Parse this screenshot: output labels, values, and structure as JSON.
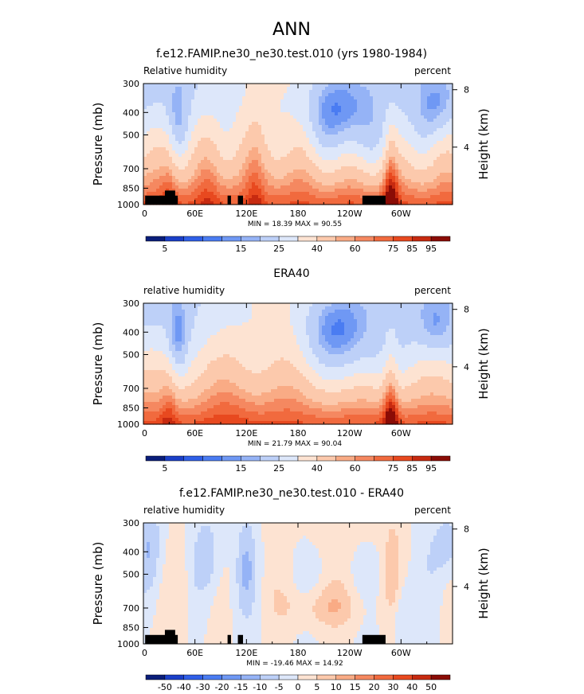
{
  "page_title": "ANN",
  "colors": {
    "blues": [
      "#0a1e7a",
      "#1a3fc8",
      "#2f5fe8",
      "#4a7cf2",
      "#6f98f4",
      "#95b3f6",
      "#bdd0f8",
      "#dde7fa"
    ],
    "reds": [
      "#fde3d2",
      "#fcc9ac",
      "#f9ab85",
      "#f58860",
      "#f16a3e",
      "#e8491f",
      "#c72a10",
      "#8a0c06"
    ],
    "topo": "#000000",
    "frame": "#000000"
  },
  "chart_data": [
    {
      "type": "heatmap",
      "title": "f.e12.FAMIP.ne30_ne30.test.010 (yrs 1980-1984)",
      "left_label": "Relative humidity",
      "right_label": "percent",
      "ylabel": "Pressure (mb)",
      "y2label": "Height (km)",
      "x_ticks": [
        "0",
        "60E",
        "120E",
        "180",
        "120W",
        "60W"
      ],
      "y_ticks": [
        "300",
        "400",
        "500",
        "700",
        "850",
        "1000"
      ],
      "y2_ticks": [
        "8",
        "4"
      ],
      "stats": "MIN =   18.39   MAX =   90.55",
      "colorbar_labels": [
        "5",
        "15",
        "25",
        "40",
        "60",
        "75",
        "85",
        "95"
      ],
      "xlim": [
        0,
        360
      ],
      "ylim": [
        1000,
        300
      ],
      "field": "model"
    },
    {
      "type": "heatmap",
      "title": "ERA40",
      "left_label": "relative humidity",
      "right_label": "percent",
      "ylabel": "Pressure (mb)",
      "y2label": "Height (km)",
      "x_ticks": [
        "0",
        "60E",
        "120E",
        "180",
        "120W",
        "60W"
      ],
      "y_ticks": [
        "300",
        "400",
        "500",
        "700",
        "850",
        "1000"
      ],
      "y2_ticks": [
        "8",
        "4"
      ],
      "stats": "MIN =   21.79   MAX =   90.04",
      "colorbar_labels": [
        "5",
        "15",
        "25",
        "40",
        "60",
        "75",
        "85",
        "95"
      ],
      "xlim": [
        0,
        360
      ],
      "ylim": [
        1000,
        300
      ],
      "field": "obs"
    },
    {
      "type": "heatmap",
      "title": "f.e12.FAMIP.ne30_ne30.test.010 - ERA40",
      "left_label": "relative humidity",
      "right_label": "percent",
      "ylabel": "Pressure (mb)",
      "y2label": "Height (km)",
      "x_ticks": [
        "0",
        "60E",
        "120E",
        "180",
        "120W",
        "60W"
      ],
      "y_ticks": [
        "300",
        "400",
        "500",
        "700",
        "850",
        "1000"
      ],
      "y2_ticks": [
        "8",
        "4"
      ],
      "stats": "MIN = -19.46   MAX =   14.92",
      "colorbar_labels": [
        "-50",
        "-40",
        "-30",
        "-20",
        "-15",
        "-10",
        "-5",
        "0",
        "5",
        "10",
        "15",
        "20",
        "30",
        "40",
        "50"
      ],
      "xlim": [
        0,
        360
      ],
      "ylim": [
        1000,
        300
      ],
      "field": "diff"
    }
  ]
}
